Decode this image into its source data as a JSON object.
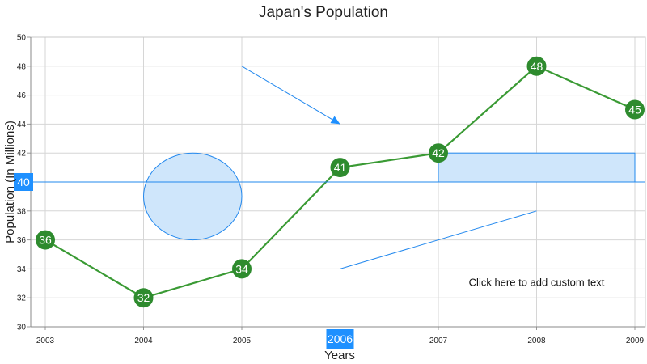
{
  "chart_data": {
    "type": "line",
    "title": "Japan's Population",
    "xlabel": "Years",
    "ylabel": "Population (In Millions)",
    "x": [
      2003,
      2004,
      2005,
      2006,
      2007,
      2008,
      2009
    ],
    "series": [
      {
        "values": [
          36,
          32,
          34,
          41,
          42,
          48,
          45
        ]
      }
    ],
    "ylim": [
      30,
      50
    ],
    "yticks": [
      30,
      32,
      34,
      36,
      38,
      40,
      42,
      44,
      46,
      48,
      50
    ],
    "xlim": [
      2003,
      2009
    ],
    "grid": true,
    "colors": {
      "line": "#3a9a34",
      "marker": "#2e8b2e",
      "annotation": "#2288ee",
      "annotation_fill": "#cfe6fb",
      "tracker_label_bg": "#1e90ff"
    },
    "trackball": {
      "x": 2006,
      "y": 40,
      "x_label": "2006",
      "y_label": "40"
    },
    "annotations": {
      "arrow": {
        "x1": 2005,
        "y1": 48,
        "x2": 2006,
        "y2": 44
      },
      "line": {
        "x1": 2006,
        "y1": 34,
        "x2": 2008,
        "y2": 38
      },
      "ellipse": {
        "x1": 2004,
        "y1": 36,
        "x2": 2005,
        "y2": 42
      },
      "rectangle": {
        "x1": 2007,
        "y1": 40,
        "x2": 2009,
        "y2": 42
      },
      "text": {
        "x": 2008,
        "y": 33,
        "label": "Click here to add custom text"
      }
    }
  }
}
